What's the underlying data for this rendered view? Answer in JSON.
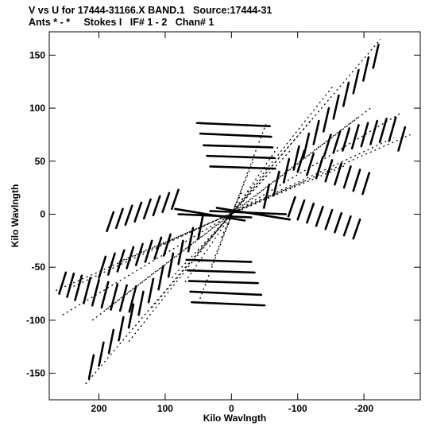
{
  "chart_data": {
    "type": "scatter",
    "title": "V vs U for 17444-31166.X BAND.1   Source:17444-31",
    "subtitle": "Ants * - *     Stokes I   IF# 1 - 2   Chan# 1",
    "xlabel": "Kilo Wavlngth",
    "ylabel": "Kilo Wavlngth",
    "xlim": [
      275,
      -285
    ],
    "ylim": [
      -175,
      172
    ],
    "xticks": [
      200,
      100,
      0,
      -100,
      -200
    ],
    "yticks": [
      150,
      100,
      50,
      0,
      -50,
      -100,
      -150
    ],
    "xtick_labels": [
      "200",
      "100",
      "0",
      "-100",
      "-200"
    ],
    "ytick_labels": [
      "150",
      "100",
      "50",
      "0",
      "-50",
      "-100",
      "-150"
    ],
    "grid": false,
    "marker_color": "#000000",
    "tracks": [
      {
        "from": [
          220,
          -160
        ],
        "to": [
          -225,
          165
        ]
      },
      {
        "from": [
          265,
          -72
        ],
        "to": [
          -270,
          75
        ]
      },
      {
        "from": [
          155,
          -120
        ],
        "to": [
          -155,
          122
        ]
      },
      {
        "from": [
          120,
          -88
        ],
        "to": [
          -122,
          90
        ]
      },
      {
        "from": [
          90,
          -60
        ],
        "to": [
          -92,
          62
        ]
      },
      {
        "from": [
          50,
          -35
        ],
        "to": [
          -52,
          36
        ]
      },
      {
        "from": [
          50,
          -84
        ],
        "to": [
          -52,
          85
        ]
      },
      {
        "from": [
          70,
          -64
        ],
        "to": [
          -72,
          65
        ]
      },
      {
        "from": [
          30,
          -48
        ],
        "to": [
          -32,
          49
        ]
      },
      {
        "from": [
          15,
          -22
        ],
        "to": [
          -17,
          23
        ]
      },
      {
        "from": [
          5,
          -10
        ],
        "to": [
          -7,
          11
        ]
      },
      {
        "from": [
          190,
          -90
        ],
        "to": [
          -192,
          92
        ]
      },
      {
        "from": [
          245,
          -70
        ],
        "to": [
          -245,
          72
        ]
      },
      {
        "from": [
          170,
          -45
        ],
        "to": [
          -172,
          46
        ]
      },
      {
        "from": [
          110,
          -30
        ],
        "to": [
          -110,
          31
        ]
      },
      {
        "from": [
          210,
          -100
        ],
        "to": [
          -210,
          100
        ]
      },
      {
        "from": [
          255,
          -95
        ],
        "to": [
          -255,
          95
        ]
      }
    ],
    "dashes": [
      {
        "start": [
          260,
          -75
        ],
        "end": [
          250,
          -55
        ]
      },
      {
        "start": [
          248,
          -78
        ],
        "end": [
          238,
          -56
        ]
      },
      {
        "start": [
          236,
          -81
        ],
        "end": [
          226,
          -58
        ]
      },
      {
        "start": [
          223,
          -84
        ],
        "end": [
          213,
          -60
        ]
      },
      {
        "start": [
          210,
          -86
        ],
        "end": [
          200,
          -62
        ]
      },
      {
        "start": [
          196,
          -88
        ],
        "end": [
          186,
          -64
        ]
      },
      {
        "start": [
          182,
          -90
        ],
        "end": [
          172,
          -66
        ]
      },
      {
        "start": [
          168,
          -91
        ],
        "end": [
          158,
          -67
        ]
      },
      {
        "start": [
          154,
          -92
        ],
        "end": [
          144,
          -68
        ]
      },
      {
        "start": [
          200,
          -60
        ],
        "end": [
          190,
          -40
        ]
      },
      {
        "start": [
          186,
          -57
        ],
        "end": [
          176,
          -37
        ]
      },
      {
        "start": [
          172,
          -54
        ],
        "end": [
          162,
          -34
        ]
      },
      {
        "start": [
          158,
          -51
        ],
        "end": [
          148,
          -31
        ]
      },
      {
        "start": [
          144,
          -48
        ],
        "end": [
          134,
          -28
        ]
      },
      {
        "start": [
          130,
          -45
        ],
        "end": [
          120,
          -25
        ]
      },
      {
        "start": [
          116,
          -42
        ],
        "end": [
          106,
          -22
        ]
      },
      {
        "start": [
          102,
          -39
        ],
        "end": [
          92,
          -19
        ]
      },
      {
        "start": [
          188,
          -16
        ],
        "end": [
          178,
          2
        ]
      },
      {
        "start": [
          174,
          -13
        ],
        "end": [
          164,
          5
        ]
      },
      {
        "start": [
          160,
          -10
        ],
        "end": [
          150,
          8
        ]
      },
      {
        "start": [
          146,
          -7
        ],
        "end": [
          136,
          11
        ]
      },
      {
        "start": [
          132,
          -4
        ],
        "end": [
          122,
          14
        ]
      },
      {
        "start": [
          118,
          -1
        ],
        "end": [
          108,
          17
        ]
      },
      {
        "start": [
          104,
          2
        ],
        "end": [
          94,
          20
        ]
      },
      {
        "start": [
          90,
          5
        ],
        "end": [
          80,
          23
        ]
      },
      {
        "start": [
          215,
          -155
        ],
        "end": [
          208,
          -133
        ]
      },
      {
        "start": [
          200,
          -143
        ],
        "end": [
          193,
          -121
        ]
      },
      {
        "start": [
          185,
          -131
        ],
        "end": [
          178,
          -109
        ]
      },
      {
        "start": [
          170,
          -119
        ],
        "end": [
          163,
          -97
        ]
      },
      {
        "start": [
          155,
          -107
        ],
        "end": [
          148,
          -85
        ]
      },
      {
        "start": [
          140,
          -95
        ],
        "end": [
          133,
          -73
        ]
      },
      {
        "start": [
          125,
          -83
        ],
        "end": [
          118,
          -61
        ]
      },
      {
        "start": [
          110,
          -71
        ],
        "end": [
          103,
          -49
        ]
      },
      {
        "start": [
          95,
          -59
        ],
        "end": [
          88,
          -37
        ]
      },
      {
        "start": [
          80,
          -47
        ],
        "end": [
          73,
          -25
        ]
      },
      {
        "start": [
          65,
          -35
        ],
        "end": [
          58,
          -13
        ]
      },
      {
        "start": [
          50,
          -23
        ],
        "end": [
          43,
          -1
        ]
      },
      {
        "start": [
          60,
          -83
        ],
        "end": [
          -50,
          -86
        ]
      },
      {
        "start": [
          62,
          -73
        ],
        "end": [
          -45,
          -76
        ]
      },
      {
        "start": [
          64,
          -63
        ],
        "end": [
          -40,
          -65
        ]
      },
      {
        "start": [
          66,
          -53
        ],
        "end": [
          -35,
          -55
        ]
      },
      {
        "start": [
          68,
          -43
        ],
        "end": [
          -30,
          -45
        ]
      },
      {
        "start": [
          -58,
          83
        ],
        "end": [
          52,
          86
        ]
      },
      {
        "start": [
          -60,
          73
        ],
        "end": [
          47,
          76
        ]
      },
      {
        "start": [
          -62,
          63
        ],
        "end": [
          42,
          65
        ]
      },
      {
        "start": [
          -64,
          53
        ],
        "end": [
          37,
          55
        ]
      },
      {
        "start": [
          -66,
          43
        ],
        "end": [
          32,
          45
        ]
      },
      {
        "start": [
          85,
          5
        ],
        "end": [
          -20,
          -6
        ]
      },
      {
        "start": [
          80,
          0
        ],
        "end": [
          -30,
          -3
        ]
      },
      {
        "start": [
          -88,
          -5
        ],
        "end": [
          22,
          6
        ]
      },
      {
        "start": [
          -82,
          0
        ],
        "end": [
          32,
          3
        ]
      },
      {
        "start": [
          -150,
          75
        ],
        "end": [
          -140,
          55
        ]
      },
      {
        "start": [
          -164,
          78
        ],
        "end": [
          -154,
          58
        ]
      },
      {
        "start": [
          -178,
          81
        ],
        "end": [
          -168,
          60
        ]
      },
      {
        "start": [
          -192,
          84
        ],
        "end": [
          -182,
          62
        ]
      },
      {
        "start": [
          -206,
          86
        ],
        "end": [
          -196,
          64
        ]
      },
      {
        "start": [
          -220,
          88
        ],
        "end": [
          -210,
          66
        ]
      },
      {
        "start": [
          -234,
          90
        ],
        "end": [
          -224,
          68
        ]
      },
      {
        "start": [
          -248,
          91
        ],
        "end": [
          -238,
          69
        ]
      },
      {
        "start": [
          -262,
          82
        ],
        "end": [
          -252,
          60
        ]
      },
      {
        "start": [
          -110,
          60
        ],
        "end": [
          -100,
          40
        ]
      },
      {
        "start": [
          -124,
          57
        ],
        "end": [
          -114,
          37
        ]
      },
      {
        "start": [
          -138,
          54
        ],
        "end": [
          -128,
          34
        ]
      },
      {
        "start": [
          -152,
          51
        ],
        "end": [
          -142,
          31
        ]
      },
      {
        "start": [
          -166,
          48
        ],
        "end": [
          -156,
          28
        ]
      },
      {
        "start": [
          -180,
          45
        ],
        "end": [
          -170,
          25
        ]
      },
      {
        "start": [
          -194,
          42
        ],
        "end": [
          -184,
          22
        ]
      },
      {
        "start": [
          -208,
          39
        ],
        "end": [
          -198,
          19
        ]
      },
      {
        "start": [
          -96,
          16
        ],
        "end": [
          -86,
          -2
        ]
      },
      {
        "start": [
          -110,
          13
        ],
        "end": [
          -100,
          -5
        ]
      },
      {
        "start": [
          -124,
          10
        ],
        "end": [
          -114,
          -8
        ]
      },
      {
        "start": [
          -138,
          7
        ],
        "end": [
          -128,
          -11
        ]
      },
      {
        "start": [
          -152,
          4
        ],
        "end": [
          -142,
          -14
        ]
      },
      {
        "start": [
          -166,
          1
        ],
        "end": [
          -156,
          -17
        ]
      },
      {
        "start": [
          -180,
          -2
        ],
        "end": [
          -170,
          -20
        ]
      },
      {
        "start": [
          -194,
          -5
        ],
        "end": [
          -184,
          -23
        ]
      },
      {
        "start": [
          -222,
          160
        ],
        "end": [
          -214,
          138
        ]
      },
      {
        "start": [
          -207,
          148
        ],
        "end": [
          -199,
          126
        ]
      },
      {
        "start": [
          -192,
          136
        ],
        "end": [
          -184,
          114
        ]
      },
      {
        "start": [
          -177,
          124
        ],
        "end": [
          -169,
          102
        ]
      },
      {
        "start": [
          -162,
          112
        ],
        "end": [
          -154,
          90
        ]
      },
      {
        "start": [
          -147,
          100
        ],
        "end": [
          -139,
          78
        ]
      },
      {
        "start": [
          -132,
          88
        ],
        "end": [
          -124,
          66
        ]
      },
      {
        "start": [
          -117,
          76
        ],
        "end": [
          -109,
          54
        ]
      },
      {
        "start": [
          -102,
          64
        ],
        "end": [
          -94,
          42
        ]
      },
      {
        "start": [
          -87,
          52
        ],
        "end": [
          -79,
          30
        ]
      },
      {
        "start": [
          -72,
          40
        ],
        "end": [
          -64,
          18
        ]
      },
      {
        "start": [
          -57,
          28
        ],
        "end": [
          -49,
          6
        ]
      }
    ]
  }
}
